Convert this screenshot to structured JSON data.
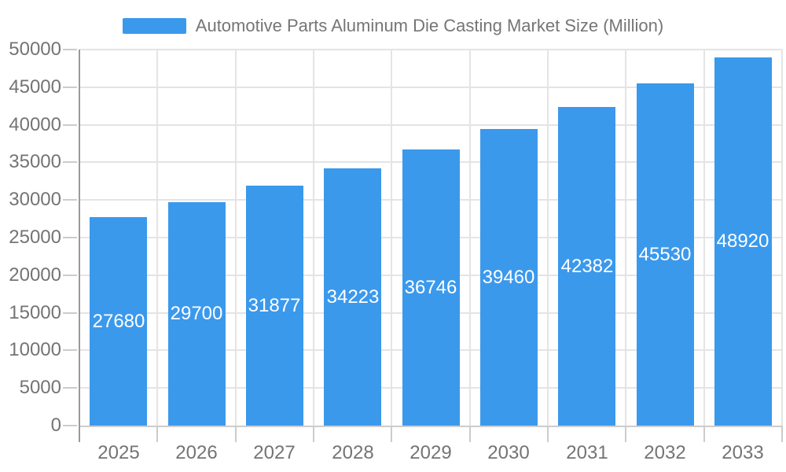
{
  "legend": {
    "label": "Automotive Parts Aluminum Die Casting Market Size (Million)"
  },
  "chart_data": {
    "type": "bar",
    "title": "Automotive Parts Aluminum Die Casting Market Size (Million)",
    "series_name": "Automotive Parts Aluminum Die Casting Market Size (Million)",
    "categories": [
      "2025",
      "2026",
      "2027",
      "2028",
      "2029",
      "2030",
      "2031",
      "2032",
      "2033"
    ],
    "values": [
      27680,
      29700,
      31877,
      34223,
      36746,
      39460,
      42382,
      45530,
      48920
    ],
    "value_labels": [
      "27680",
      "29700",
      "31877",
      "34223",
      "36746",
      "39460",
      "42382",
      "45530",
      "48920"
    ],
    "xlabel": "",
    "ylabel": "",
    "ylim": [
      0,
      50000
    ],
    "y_tick_interval": 5000,
    "y_ticks": [
      0,
      5000,
      10000,
      15000,
      20000,
      25000,
      30000,
      35000,
      40000,
      45000,
      50000
    ],
    "grid": true,
    "legend_position": "top",
    "value_label_position": "inside-center",
    "colors": {
      "bar": "#3b99ec",
      "grid": "#e4e4e4",
      "y_axis_line": "#9a9a9a",
      "x_axis_line": "#cccccc",
      "tick": "#cccccc",
      "axis_text": "#747474",
      "value_text": "#ffffff",
      "legend_text": "#757575"
    }
  }
}
